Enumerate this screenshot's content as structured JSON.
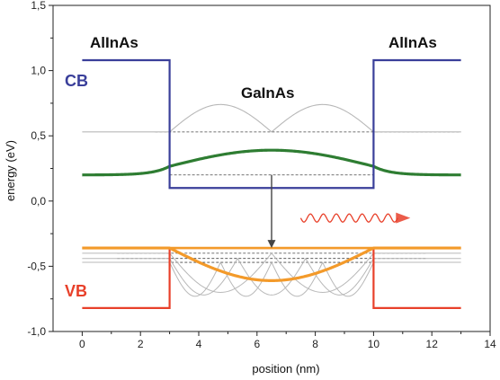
{
  "chart_data": {
    "type": "line",
    "title": "",
    "xlabel": "position (nm)",
    "ylabel": "energy (eV)",
    "xlim": [
      -1,
      14
    ],
    "ylim": [
      -1.0,
      1.5
    ],
    "xticks": [
      0,
      2,
      4,
      6,
      8,
      10,
      12,
      14
    ],
    "yticks": [
      -1.0,
      -0.5,
      0.0,
      0.5,
      1.0,
      1.5
    ],
    "xtick_labels": [
      "0",
      "2",
      "4",
      "6",
      "8",
      "10",
      "12",
      "14"
    ],
    "ytick_labels": [
      "-1,0",
      "-0,5",
      "0,0",
      "0,5",
      "1,0",
      "1,5"
    ],
    "grid": false,
    "annotations": {
      "left_barrier": "AlInAs",
      "right_barrier": "AlInAs",
      "well": "GaInAs",
      "conduction_band": "CB",
      "valence_band": "VB"
    },
    "colors": {
      "conduction_band": "#3a3f9a",
      "valence_band": "#e8402a",
      "electron_ground_state": "#2e7d32",
      "hole_ground_state": "#f39a2a",
      "higher_states": "#b8b8b8",
      "energy_levels": "#444444",
      "transition_arrow": "#444444",
      "photon": "#e8402a"
    },
    "series": [
      {
        "name": "CB",
        "x": [
          0,
          3,
          3,
          10,
          10,
          13
        ],
        "y": [
          1.08,
          1.08,
          0.1,
          0.1,
          1.08,
          1.08
        ]
      },
      {
        "name": "VB",
        "x": [
          0,
          3,
          3,
          10,
          10,
          13
        ],
        "y": [
          -0.82,
          -0.82,
          -0.36,
          -0.36,
          -0.82,
          -0.82
        ]
      }
    ],
    "energy_levels": {
      "electron_ground": 0.2,
      "electron_excited": 0.53,
      "hole_ground": -0.36,
      "hole_excited": [
        -0.4,
        -0.44,
        -0.47
      ]
    },
    "transition": {
      "x": 6.5,
      "from": 0.2,
      "to": -0.36
    },
    "photon": {
      "x_start": 7.5,
      "x_end": 11.2,
      "y": -0.13
    }
  }
}
